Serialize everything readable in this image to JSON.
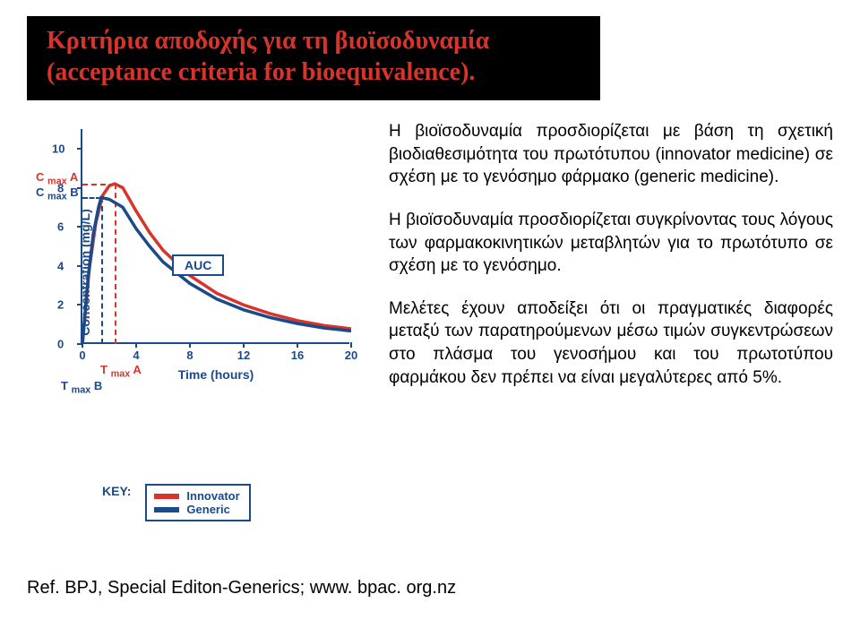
{
  "title": {
    "line1": "Κριτήρια αποδοχής για τη βιοϊσοδυναμία",
    "line2": "(acceptance criteria for bioequivalence)."
  },
  "paragraphs": {
    "p1": "Η βιοϊσοδυναμία προσδιορίζεται με βάση τη σχετική βιοδιαθεσιμότητα του πρωτότυπου (innovator medicine) σε σχέση με το γενόσημο φάρμακο (generic medicine).",
    "p2": "Η βιοϊσοδυναμία προσδιορίζεται συγκρίνοντας τους λόγους των φαρμακοκινητικών μεταβλητών για το πρωτότυπο σε σχέση με το γενόσημο.",
    "p3": "Μελέτες έχουν αποδείξει ότι οι πραγματικές διαφορές μεταξύ των παρατηρούμενων μέσω τιμών συγκεντρώσεων στο πλάσμα του γενοσήμου και του πρωτοτύπου φαρμάκου δεν πρέπει να είναι μεγαλύτερες από 5%."
  },
  "reference": "Ref. BPJ, Special Editon-Generics; www. bpac. org.nz",
  "chart": {
    "y_label": "Concentration (mg/L)",
    "x_label": "Time (hours)",
    "y_ticks": [
      0,
      2,
      4,
      6,
      8,
      10
    ],
    "x_ticks": [
      0,
      4,
      8,
      12,
      16,
      20
    ],
    "ylim": [
      0,
      11
    ],
    "xlim": [
      0,
      20
    ],
    "axis_color": "#1a4a8a",
    "background_color": "#ffffff",
    "cmax_a_label": "C max A",
    "cmax_b_label": "C max B",
    "cmax_a_y": 8.2,
    "cmax_b_y": 7.5,
    "tmax_a_label": "T max A",
    "tmax_b_label": "T max B",
    "tmax_a_x": 2.4,
    "tmax_b_x": 1.4,
    "peak_x": 2.0,
    "auc_label": "AUC",
    "key_label": "KEY:",
    "legend": [
      {
        "label": "Innovator",
        "color": "#d9342b"
      },
      {
        "label": "Generic",
        "color": "#1a4a8a"
      }
    ],
    "series": {
      "innovator": {
        "color": "#d9342b",
        "points": [
          [
            0,
            0
          ],
          [
            0.5,
            3.8
          ],
          [
            1,
            6.2
          ],
          [
            1.5,
            7.6
          ],
          [
            2,
            8.1
          ],
          [
            2.4,
            8.2
          ],
          [
            3,
            8.0
          ],
          [
            4,
            6.8
          ],
          [
            5,
            5.7
          ],
          [
            6,
            4.8
          ],
          [
            8,
            3.5
          ],
          [
            10,
            2.6
          ],
          [
            12,
            2.0
          ],
          [
            14,
            1.55
          ],
          [
            16,
            1.2
          ],
          [
            18,
            0.95
          ],
          [
            20,
            0.78
          ]
        ]
      },
      "generic": {
        "color": "#1a4a8a",
        "points": [
          [
            0,
            0
          ],
          [
            0.4,
            3.2
          ],
          [
            0.8,
            5.6
          ],
          [
            1.2,
            7.0
          ],
          [
            1.4,
            7.5
          ],
          [
            2,
            7.4
          ],
          [
            3,
            7.0
          ],
          [
            4,
            5.9
          ],
          [
            5,
            5.0
          ],
          [
            6,
            4.2
          ],
          [
            8,
            3.1
          ],
          [
            10,
            2.3
          ],
          [
            12,
            1.75
          ],
          [
            14,
            1.35
          ],
          [
            16,
            1.05
          ],
          [
            18,
            0.82
          ],
          [
            20,
            0.67
          ]
        ]
      }
    }
  }
}
